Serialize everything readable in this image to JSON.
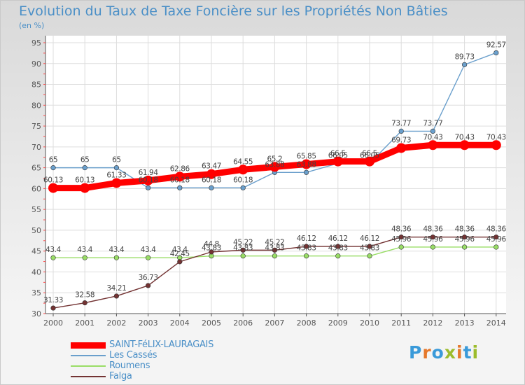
{
  "title": "Evolution du Taux de Taxe Foncière sur les Propriétés Non Bâties",
  "subtitle": "(en %)",
  "logo": {
    "text": "Proxiti",
    "colors": [
      "#3a9ad9",
      "#e5782b",
      "#3a9ad9",
      "#9cbc2c",
      "#e5782b",
      "#3a9ad9",
      "#9cbc2c"
    ]
  },
  "chart_data": {
    "type": "line",
    "title": "Evolution du Taux de Taxe Foncière sur les Propriétés Non Bâties",
    "ylabel": "(en %)",
    "xlabel": "",
    "ylim": [
      30,
      95
    ],
    "yticks": [
      30,
      35,
      40,
      45,
      50,
      55,
      60,
      65,
      70,
      75,
      80,
      85,
      90,
      95
    ],
    "categories": [
      "2000",
      "2001",
      "2002",
      "2003",
      "2004",
      "2005",
      "2006",
      "2007",
      "2008",
      "2009",
      "2010",
      "2011",
      "2012",
      "2013",
      "2014"
    ],
    "grid": true,
    "legend_position": "bottom-left",
    "series": [
      {
        "name": "SAINT-FéLIX-LAURAGAIS",
        "color": "#ff0000",
        "values": [
          60.13,
          60.13,
          61.33,
          61.94,
          62.86,
          63.47,
          64.55,
          65.2,
          65.85,
          66.5,
          66.5,
          69.73,
          70.43,
          70.43,
          70.43
        ],
        "labels": [
          "60.13",
          "60.13",
          "61.33",
          "61.94",
          "62.86",
          "63.47",
          "64.55",
          "65.2",
          "65.85",
          "66.5",
          "66.5",
          "69.73",
          "70.43",
          "70.43",
          "70.43"
        ]
      },
      {
        "name": "Les Cassés",
        "color": "#6a9fcc",
        "values": [
          65,
          65,
          65,
          60.18,
          60.18,
          60.18,
          60.18,
          63.88,
          63.88,
          66.05,
          66.05,
          73.77,
          73.77,
          89.73,
          92.57
        ],
        "labels": [
          "65",
          "65",
          "65",
          "60.18",
          "60.18",
          "60.18",
          "60.18",
          "63.88",
          "63.88",
          "66.05",
          "66.05",
          "73.77",
          "73.77",
          "89.73",
          "92.57"
        ]
      },
      {
        "name": "Roumens",
        "color": "#99dd66",
        "values": [
          43.4,
          43.4,
          43.4,
          43.4,
          43.4,
          43.83,
          43.83,
          43.83,
          43.83,
          43.83,
          43.83,
          45.96,
          45.96,
          45.96,
          45.96
        ],
        "labels": [
          "43.4",
          "43.4",
          "43.4",
          "43.4",
          "43.4",
          "43.83",
          "43.83",
          "43.83",
          "43.83",
          "43.83",
          "43.83",
          "45.96",
          "45.96",
          "45.96",
          "45.96"
        ]
      },
      {
        "name": "Falga",
        "color": "#733333",
        "values": [
          31.33,
          32.58,
          34.21,
          36.73,
          42.45,
          44.8,
          45.22,
          45.22,
          46.12,
          46.12,
          46.12,
          48.36,
          48.36,
          48.36,
          48.36
        ],
        "labels": [
          "31.33",
          "32.58",
          "34.21",
          "36.73",
          "42.45",
          "44.8",
          "45.22",
          "45.22",
          "46.12",
          "46.12",
          "46.12",
          "48.36",
          "48.36",
          "48.36",
          "48.36"
        ]
      }
    ]
  }
}
